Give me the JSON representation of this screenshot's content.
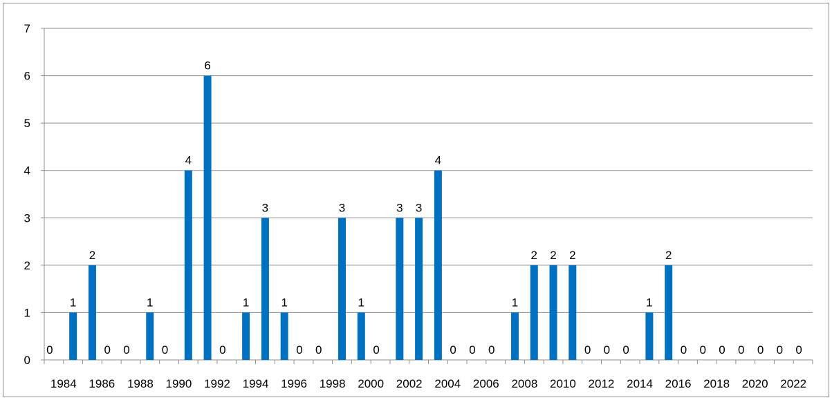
{
  "chart_data": {
    "type": "bar",
    "title": "",
    "xlabel": "",
    "ylabel": "",
    "ylim": [
      0,
      7
    ],
    "yticks": [
      0,
      1,
      2,
      3,
      4,
      5,
      6,
      7
    ],
    "grid": true,
    "legend": "none",
    "bar_color": "#0070c0",
    "categories": [
      "1984",
      "1985",
      "1986",
      "1987",
      "1988",
      "1989",
      "1990",
      "1991",
      "1992",
      "1993",
      "1994",
      "1995",
      "1996",
      "1997",
      "1998",
      "1999",
      "2000",
      "2001",
      "2002",
      "2003",
      "2004",
      "2005",
      "2006",
      "2007",
      "2008",
      "2009",
      "2010",
      "2011",
      "2012",
      "2013",
      "2014",
      "2015",
      "2016",
      "2017",
      "2018",
      "2019",
      "2020",
      "2021",
      "2022",
      "2023"
    ],
    "x_tick_labels": [
      "1984",
      "1986",
      "1988",
      "1990",
      "1992",
      "1994",
      "1996",
      "1998",
      "2000",
      "2002",
      "2004",
      "2006",
      "2008",
      "2010",
      "2012",
      "2014",
      "2016",
      "2018",
      "2020",
      "2022"
    ],
    "values": [
      0,
      1,
      2,
      0,
      0,
      1,
      0,
      4,
      6,
      0,
      1,
      3,
      1,
      0,
      0,
      3,
      1,
      0,
      3,
      3,
      4,
      0,
      0,
      0,
      1,
      2,
      2,
      2,
      0,
      0,
      0,
      1,
      2,
      0,
      0,
      0,
      0,
      0,
      0,
      0
    ],
    "data_labels": [
      "0",
      "1",
      "2",
      "0",
      "0",
      "1",
      "0",
      "4",
      "6",
      "0",
      "1",
      "3",
      "1",
      "0",
      "0",
      "3",
      "1",
      "0",
      "3",
      "3",
      "4",
      "0",
      "0",
      "0",
      "1",
      "2",
      "2",
      "2",
      "0",
      "0",
      "0",
      "1",
      "2",
      "0",
      "0",
      "0",
      "0",
      "0",
      "0",
      "0"
    ]
  }
}
